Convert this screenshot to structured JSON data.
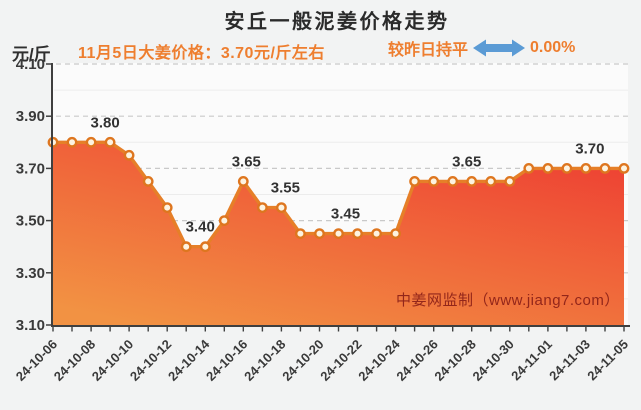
{
  "header": {
    "title": "安丘一般泥姜价格走势",
    "unit_label": "元/斤",
    "subtitle": "11月5日大姜价格：3.70元/斤左右",
    "trend_label": "较昨日持平",
    "trend_value": "0.00%",
    "colors": {
      "title_dark": "#2b2b2b",
      "accent_orange": "#ee7e2f",
      "arrow_blue": "#5b9bd5"
    }
  },
  "watermark": {
    "text": "中姜网监制（www.jiang7.com）",
    "color": "#93261a"
  },
  "chart_data": {
    "type": "area",
    "title": "安丘一般泥姜价格走势",
    "xlabel": "",
    "ylabel": "元/斤",
    "ylim": [
      3.1,
      4.1
    ],
    "yticks": [
      4.1,
      3.9,
      3.7,
      3.5,
      3.3,
      3.1
    ],
    "grid": "horizontal major dashed + minor solid",
    "legend_position": "none",
    "x": [
      "24-10-06",
      "24-10-07",
      "24-10-08",
      "24-10-09",
      "24-10-10",
      "24-10-11",
      "24-10-12",
      "24-10-13",
      "24-10-14",
      "24-10-15",
      "24-10-16",
      "24-10-17",
      "24-10-18",
      "24-10-19",
      "24-10-20",
      "24-10-21",
      "24-10-22",
      "24-10-23",
      "24-10-24",
      "24-10-25",
      "24-10-26",
      "24-10-27",
      "24-10-28",
      "24-10-29",
      "24-10-30",
      "24-10-31",
      "24-11-01",
      "24-11-02",
      "24-11-03",
      "24-11-04",
      "24-11-05"
    ],
    "xtick_every": 2,
    "values": [
      3.8,
      3.8,
      3.8,
      3.8,
      3.75,
      3.65,
      3.55,
      3.4,
      3.4,
      3.5,
      3.65,
      3.55,
      3.55,
      3.45,
      3.45,
      3.45,
      3.45,
      3.45,
      3.45,
      3.65,
      3.65,
      3.65,
      3.65,
      3.65,
      3.65,
      3.7,
      3.7,
      3.7,
      3.7,
      3.7,
      3.7
    ],
    "annotations": [
      {
        "index": 3,
        "dx": -5,
        "label": "3.80"
      },
      {
        "index": 7,
        "dx": 14,
        "label": "3.40"
      },
      {
        "index": 10,
        "dx": 3,
        "label": "3.65"
      },
      {
        "index": 12,
        "dx": 4,
        "label": "3.55"
      },
      {
        "index": 15,
        "dx": 7,
        "label": "3.45"
      },
      {
        "index": 22,
        "dx": -5,
        "label": "3.65"
      },
      {
        "index": 28,
        "dx": 4,
        "label": "3.70"
      }
    ],
    "colors": {
      "line": "#e67f28",
      "marker_fill": "#fdf3e0",
      "marker_stroke": "#de761f",
      "area_top": "#ee4133",
      "area_bottom": "#f29243",
      "grid_major": "#c9c9c9",
      "grid_minor": "#ececec",
      "axis": "#3f3f3f",
      "tick_label": "#3a3a3a",
      "value_label": "#323232",
      "plot_bg": "#fbfbfb"
    }
  }
}
